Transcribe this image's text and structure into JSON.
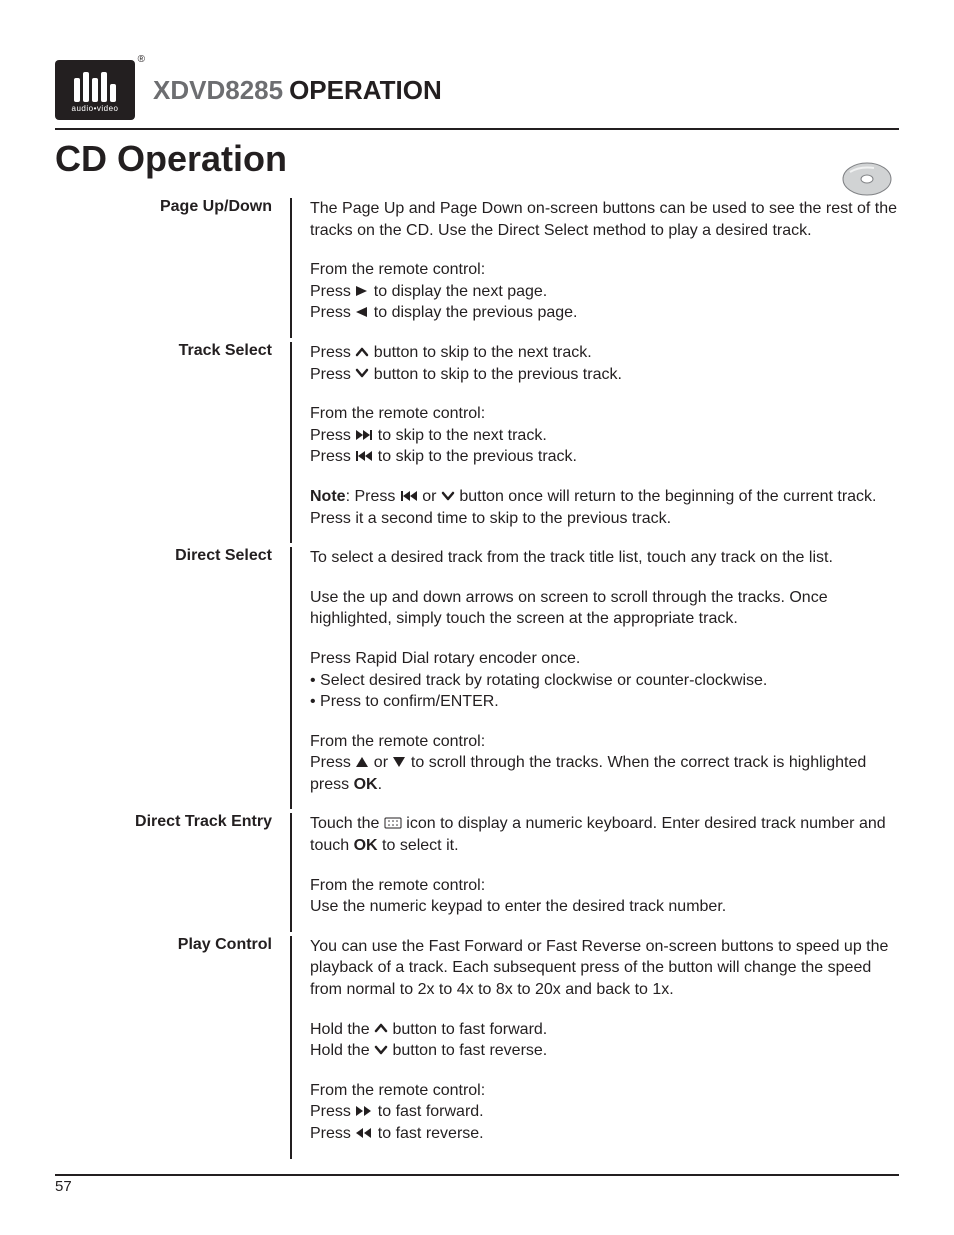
{
  "header": {
    "logo_sub": "audio•video",
    "model": "XDVD8285",
    "operation": "OPERATION"
  },
  "section_title": "CD Operation",
  "page_number": "57",
  "colors": {
    "text": "#231f20",
    "model_gray": "#6d6e71",
    "bg": "#ffffff"
  },
  "typography": {
    "body_size": 16,
    "title_size": 36,
    "header_size": 26,
    "label_weight": "bold"
  },
  "sections": [
    {
      "label": "Page Up/Down",
      "paras": [
        {
          "t": "The Page Up and Page Down on-screen buttons can be used to see the rest of the tracks on the CD. Use the Direct Select method to play a desired track."
        },
        {
          "lines": [
            "From the remote control:",
            "Press {play-right} to display the next page.",
            "Press {play-left} to display the previous page."
          ]
        }
      ]
    },
    {
      "label": "Track Select",
      "paras": [
        {
          "lines": [
            "Press {chev-up} button to skip to the next track.",
            "Press {chev-down} button to skip to the previous track."
          ]
        },
        {
          "lines": [
            "From the remote control:",
            "Press {skip-fwd} to skip to the next track.",
            "Press {skip-back} to skip to the previous track."
          ]
        },
        {
          "t": "{b}Note{/b}: Press {skip-back} or {chev-down} button once will return to the beginning of the current track. Press it a second time to skip to the previous track."
        }
      ]
    },
    {
      "label": "Direct Select",
      "paras": [
        {
          "t": "To select a desired track from the track title list, touch any track on the list."
        },
        {
          "t": "Use the up and down arrows on screen to scroll through the tracks. Once highlighted, simply touch the screen at the appropriate track."
        },
        {
          "lines": [
            "Press Rapid Dial rotary encoder once.",
            "• Select desired track by rotating clockwise or counter-clockwise.",
            "• Press to confirm/ENTER."
          ]
        },
        {
          "lines": [
            "From the remote control:",
            "Press {tri-up} or {tri-down} to scroll through the tracks. When the correct track is highlighted press {b}OK{/b}."
          ]
        }
      ]
    },
    {
      "label": "Direct Track Entry",
      "paras": [
        {
          "t": "Touch the {keypad} icon to display a numeric keyboard. Enter desired track number and touch {b}OK{/b} to select it."
        },
        {
          "lines": [
            "From the remote control:",
            "Use the numeric keypad to enter the desired track number."
          ]
        }
      ]
    },
    {
      "label": "Play Control",
      "paras": [
        {
          "t": "You can use the Fast Forward or Fast Reverse on-screen buttons to speed up the playback of a track. Each subsequent press of the button will change the speed from normal to 2x to 4x to 8x to 20x and back to 1x."
        },
        {
          "lines": [
            "Hold the {chev-up} button to fast forward.",
            "Hold the {chev-down} button to fast reverse."
          ]
        },
        {
          "lines": [
            "From the remote control:",
            "Press {ff} to fast forward.",
            "Press {rew} to fast reverse."
          ]
        }
      ]
    }
  ]
}
